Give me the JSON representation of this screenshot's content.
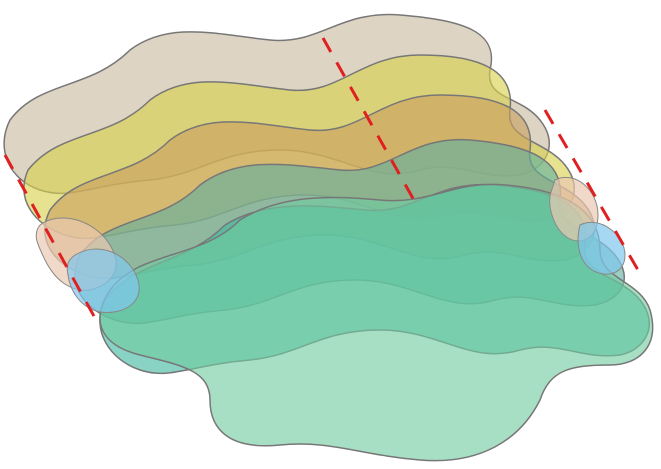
{
  "diagram": {
    "layers": [
      {
        "name": "layer-1",
        "fill": "#c9b9a0",
        "stroke": "#777777"
      },
      {
        "name": "layer-2",
        "fill": "#d9d04a",
        "stroke": "#777777"
      },
      {
        "name": "layer-3",
        "fill": "#c9a060",
        "stroke": "#777777"
      },
      {
        "name": "layer-4",
        "fill": "#60b0a0",
        "stroke": "#777777"
      },
      {
        "name": "layer-5",
        "fill": "#40b8a0",
        "stroke": "#777777"
      },
      {
        "name": "layer-6",
        "fill": "#70cca0",
        "stroke": "#777777"
      }
    ],
    "highlight_color": "#e02020",
    "left_blob_colors": [
      "#e9c9b0",
      "#80c8f0"
    ],
    "right_blob_colors": [
      "#e9c9b0",
      "#80c8f0"
    ]
  }
}
